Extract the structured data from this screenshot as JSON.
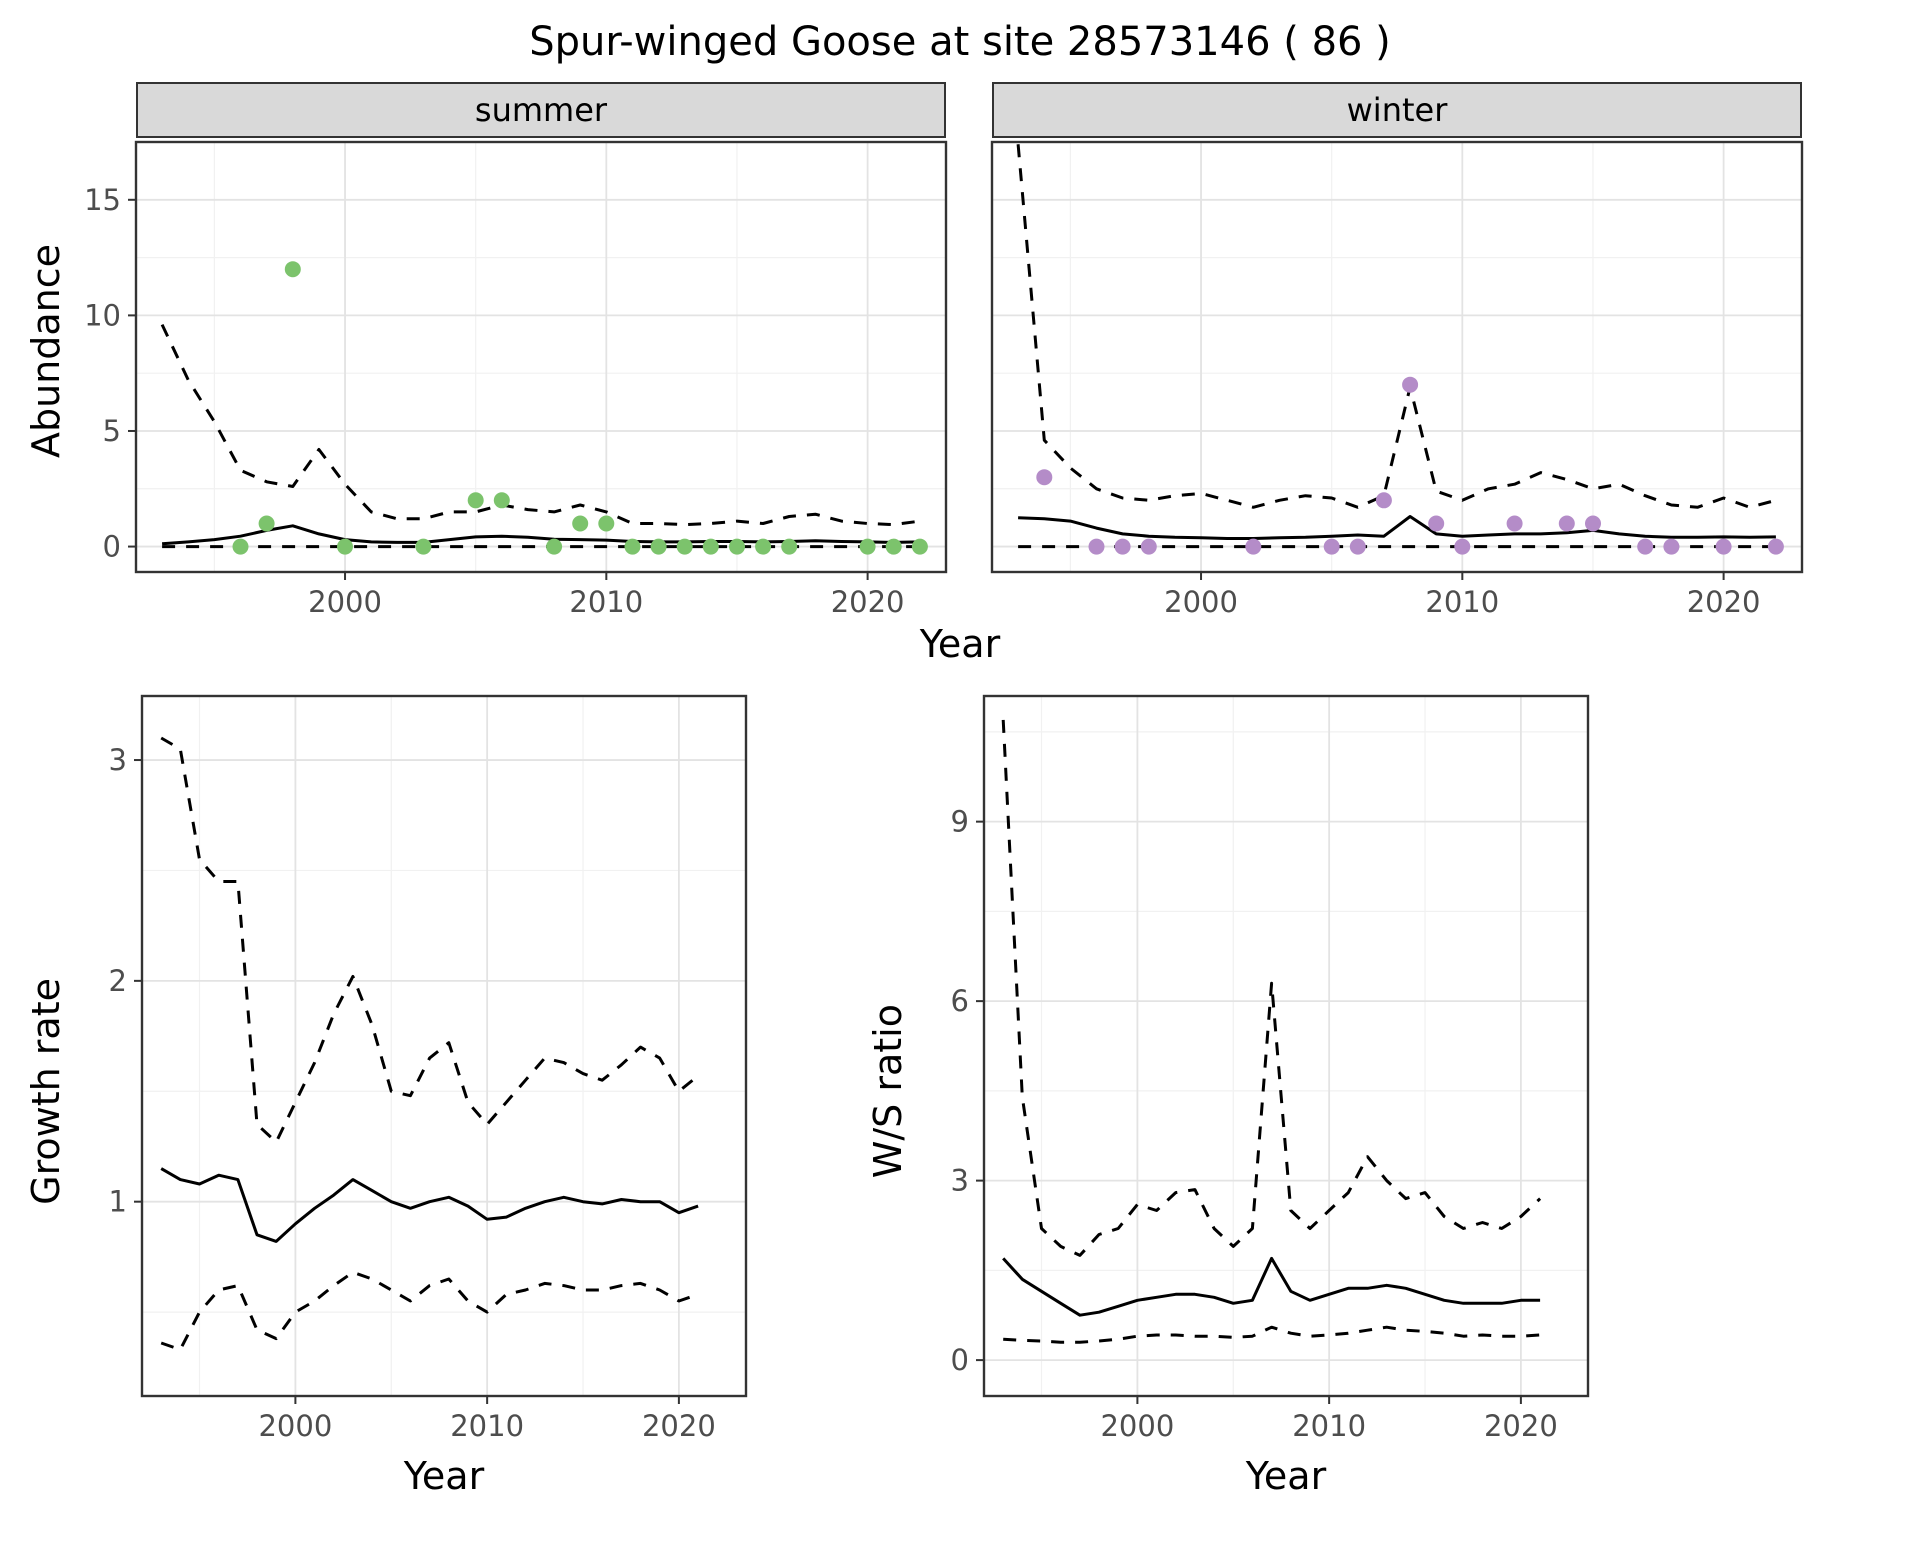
{
  "title": "Spur-winged Goose at site 28573146 ( 86 )",
  "top_axis": {
    "xlabel": "Year",
    "ylabel": "Abundance"
  },
  "colors": {
    "summer_point": "#7cc36c",
    "winter_point": "#b48cc8",
    "line": "#000000",
    "panel_border": "#333333",
    "strip_bg": "#d9d9d9",
    "grid_major": "#e3e3e3",
    "grid_minor": "#f1f1f1",
    "tick_text": "#4d4d4d"
  },
  "chart_data": [
    {
      "id": "abundance-summer",
      "type": "scatter",
      "facet_label": "summer",
      "xlabel": "Year",
      "ylabel": "Abundance",
      "xlim": [
        1992,
        2023
      ],
      "ylim": [
        -1.1,
        17.5
      ],
      "xticks": [
        2000,
        2010,
        2020
      ],
      "xminor": [
        1995,
        2005,
        2015
      ],
      "yticks": [
        0,
        5,
        10,
        15
      ],
      "yminor": [
        2.5,
        7.5,
        12.5
      ],
      "line_x": [
        1993,
        1994,
        1995,
        1996,
        1997,
        1998,
        1999,
        2000,
        2001,
        2002,
        2003,
        2004,
        2005,
        2006,
        2007,
        2008,
        2009,
        2010,
        2011,
        2012,
        2013,
        2014,
        2015,
        2016,
        2017,
        2018,
        2019,
        2020,
        2021,
        2022
      ],
      "lines": [
        {
          "name": "fitted-mean",
          "style": "solid",
          "y": [
            0.12,
            0.2,
            0.3,
            0.45,
            0.7,
            0.9,
            0.55,
            0.3,
            0.2,
            0.18,
            0.18,
            0.3,
            0.42,
            0.45,
            0.4,
            0.32,
            0.3,
            0.28,
            0.22,
            0.2,
            0.2,
            0.22,
            0.22,
            0.2,
            0.22,
            0.25,
            0.22,
            0.2,
            0.18,
            0.2
          ]
        },
        {
          "name": "upper-ci",
          "style": "dashed",
          "y": [
            9.6,
            7.2,
            5.4,
            3.3,
            2.8,
            2.6,
            4.2,
            2.7,
            1.5,
            1.2,
            1.2,
            1.5,
            1.5,
            1.8,
            1.6,
            1.5,
            1.8,
            1.5,
            1.0,
            1.0,
            0.95,
            1.0,
            1.1,
            1.0,
            1.3,
            1.4,
            1.1,
            1.0,
            0.95,
            1.1
          ]
        },
        {
          "name": "lower-ci",
          "style": "dashed",
          "y": [
            0,
            0,
            0,
            0,
            0,
            0,
            0,
            0,
            0,
            0,
            0,
            0,
            0,
            0,
            0,
            0,
            0,
            0,
            0,
            0,
            0,
            0,
            0,
            0,
            0,
            0,
            0,
            0,
            0,
            0
          ]
        }
      ],
      "points": {
        "name": "observed-counts-summer",
        "color": "#7cc36c",
        "x": [
          1996,
          1997,
          1998,
          2000,
          2003,
          2005,
          2006,
          2008,
          2009,
          2010,
          2011,
          2012,
          2013,
          2014,
          2015,
          2016,
          2017,
          2020,
          2021,
          2022
        ],
        "y": [
          0,
          1,
          12,
          0,
          0,
          2,
          2,
          0,
          1,
          1,
          0,
          0,
          0,
          0,
          0,
          0,
          0,
          0,
          0,
          0
        ]
      }
    },
    {
      "id": "abundance-winter",
      "type": "scatter",
      "facet_label": "winter",
      "xlabel": "Year",
      "ylabel": "Abundance",
      "xlim": [
        1992,
        2023
      ],
      "ylim": [
        -1.1,
        17.5
      ],
      "xticks": [
        2000,
        2010,
        2020
      ],
      "xminor": [
        1995,
        2005,
        2015
      ],
      "yticks": [
        0,
        5,
        10,
        15
      ],
      "yminor": [
        2.5,
        7.5,
        12.5
      ],
      "line_x": [
        1993,
        1994,
        1995,
        1996,
        1997,
        1998,
        1999,
        2000,
        2001,
        2002,
        2003,
        2004,
        2005,
        2006,
        2007,
        2008,
        2009,
        2010,
        2011,
        2012,
        2013,
        2014,
        2015,
        2016,
        2017,
        2018,
        2019,
        2020,
        2021,
        2022
      ],
      "lines": [
        {
          "name": "fitted-mean",
          "style": "solid",
          "y": [
            1.25,
            1.2,
            1.1,
            0.8,
            0.55,
            0.45,
            0.4,
            0.38,
            0.35,
            0.35,
            0.38,
            0.4,
            0.45,
            0.5,
            0.45,
            1.3,
            0.55,
            0.45,
            0.5,
            0.55,
            0.55,
            0.6,
            0.7,
            0.55,
            0.45,
            0.4,
            0.4,
            0.42,
            0.4,
            0.42
          ]
        },
        {
          "name": "upper-ci",
          "style": "dashed",
          "y": [
            17.4,
            4.6,
            3.4,
            2.5,
            2.1,
            2.0,
            2.2,
            2.3,
            2.0,
            1.7,
            2.0,
            2.2,
            2.1,
            1.7,
            2.2,
            6.9,
            2.4,
            2.0,
            2.5,
            2.7,
            3.2,
            2.9,
            2.5,
            2.7,
            2.2,
            1.8,
            1.7,
            2.1,
            1.7,
            2.0
          ]
        },
        {
          "name": "lower-ci",
          "style": "dashed",
          "y": [
            0,
            0,
            0,
            0,
            0,
            0,
            0,
            0,
            0,
            0,
            0,
            0,
            0,
            0,
            0,
            0,
            0,
            0,
            0,
            0,
            0,
            0,
            0,
            0,
            0,
            0,
            0,
            0,
            0,
            0
          ]
        }
      ],
      "points": {
        "name": "observed-counts-winter",
        "color": "#b48cc8",
        "x": [
          1994,
          1996,
          1997,
          1998,
          2002,
          2005,
          2006,
          2007,
          2008,
          2009,
          2010,
          2012,
          2014,
          2015,
          2017,
          2018,
          2020,
          2022
        ],
        "y": [
          3,
          0,
          0,
          0,
          0,
          0,
          0,
          2,
          7,
          1,
          0,
          1,
          1,
          1,
          0,
          0,
          0,
          0
        ]
      }
    },
    {
      "id": "growth-rate",
      "type": "line",
      "xlabel": "Year",
      "ylabel": "Growth rate",
      "xlim": [
        1992,
        2023.5
      ],
      "ylim": [
        0.12,
        3.29
      ],
      "xticks": [
        2000,
        2010,
        2020
      ],
      "xminor": [
        1995,
        2005,
        2015
      ],
      "yticks": [
        1,
        2,
        3
      ],
      "yminor": [
        0.5,
        1.5,
        2.5
      ],
      "line_x": [
        1993,
        1994,
        1995,
        1996,
        1997,
        1998,
        1999,
        2000,
        2001,
        2002,
        2003,
        2004,
        2005,
        2006,
        2007,
        2008,
        2009,
        2010,
        2011,
        2012,
        2013,
        2014,
        2015,
        2016,
        2017,
        2018,
        2019,
        2020,
        2021
      ],
      "lines": [
        {
          "name": "fitted-mean",
          "style": "solid",
          "y": [
            1.15,
            1.1,
            1.08,
            1.12,
            1.1,
            0.85,
            0.82,
            0.9,
            0.97,
            1.03,
            1.1,
            1.05,
            1.0,
            0.97,
            1.0,
            1.02,
            0.98,
            0.92,
            0.93,
            0.97,
            1.0,
            1.02,
            1.0,
            0.99,
            1.01,
            1.0,
            1.0,
            0.95,
            0.98
          ]
        },
        {
          "name": "upper-ci",
          "style": "dashed",
          "y": [
            3.1,
            3.05,
            2.55,
            2.45,
            2.45,
            1.35,
            1.27,
            1.45,
            1.63,
            1.85,
            2.02,
            1.8,
            1.5,
            1.48,
            1.65,
            1.72,
            1.45,
            1.35,
            1.45,
            1.55,
            1.65,
            1.63,
            1.58,
            1.55,
            1.62,
            1.7,
            1.65,
            1.5,
            1.57
          ]
        },
        {
          "name": "lower-ci",
          "style": "dashed",
          "y": [
            0.36,
            0.33,
            0.5,
            0.6,
            0.62,
            0.42,
            0.38,
            0.5,
            0.55,
            0.62,
            0.68,
            0.65,
            0.6,
            0.55,
            0.62,
            0.65,
            0.55,
            0.5,
            0.58,
            0.6,
            0.63,
            0.62,
            0.6,
            0.6,
            0.62,
            0.63,
            0.6,
            0.55,
            0.58
          ]
        }
      ]
    },
    {
      "id": "ws-ratio",
      "type": "line",
      "xlabel": "Year",
      "ylabel": "W/S ratio",
      "xlim": [
        1992,
        2023.5
      ],
      "ylim": [
        -0.6,
        11.1
      ],
      "xticks": [
        2000,
        2010,
        2020
      ],
      "xminor": [
        1995,
        2005,
        2015
      ],
      "yticks": [
        0,
        3,
        6,
        9
      ],
      "yminor": [
        1.5,
        4.5,
        7.5,
        10.5
      ],
      "line_x": [
        1993,
        1994,
        1995,
        1996,
        1997,
        1998,
        1999,
        2000,
        2001,
        2002,
        2003,
        2004,
        2005,
        2006,
        2007,
        2008,
        2009,
        2010,
        2011,
        2012,
        2013,
        2014,
        2015,
        2016,
        2017,
        2018,
        2019,
        2020,
        2021
      ],
      "lines": [
        {
          "name": "fitted-mean",
          "style": "solid",
          "y": [
            1.7,
            1.35,
            1.15,
            0.95,
            0.75,
            0.8,
            0.9,
            1.0,
            1.05,
            1.1,
            1.1,
            1.05,
            0.95,
            1.0,
            1.7,
            1.15,
            1.0,
            1.1,
            1.2,
            1.2,
            1.25,
            1.2,
            1.1,
            1.0,
            0.95,
            0.95,
            0.95,
            1.0,
            1.0
          ]
        },
        {
          "name": "upper-ci",
          "style": "dashed",
          "y": [
            10.7,
            4.4,
            2.2,
            1.9,
            1.75,
            2.1,
            2.2,
            2.6,
            2.5,
            2.8,
            2.85,
            2.2,
            1.9,
            2.2,
            6.3,
            2.5,
            2.2,
            2.5,
            2.8,
            3.4,
            3.0,
            2.7,
            2.8,
            2.4,
            2.2,
            2.3,
            2.2,
            2.4,
            2.7
          ]
        },
        {
          "name": "lower-ci",
          "style": "dashed",
          "y": [
            0.35,
            0.33,
            0.32,
            0.3,
            0.3,
            0.32,
            0.35,
            0.4,
            0.42,
            0.42,
            0.4,
            0.4,
            0.38,
            0.4,
            0.55,
            0.45,
            0.4,
            0.42,
            0.45,
            0.5,
            0.55,
            0.5,
            0.48,
            0.45,
            0.4,
            0.42,
            0.4,
            0.4,
            0.42
          ]
        }
      ]
    }
  ]
}
